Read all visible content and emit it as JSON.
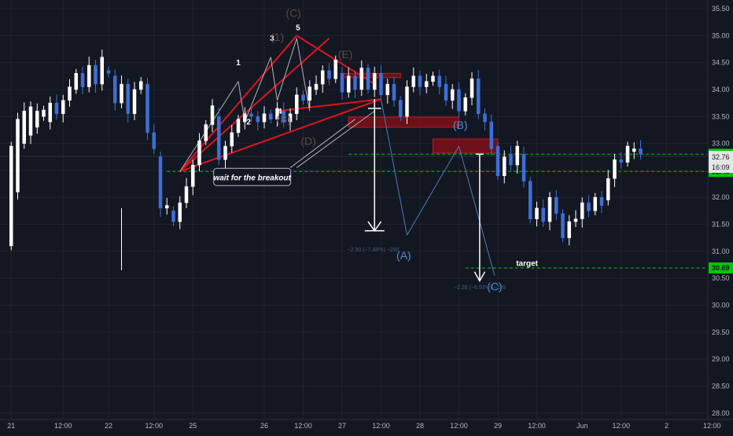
{
  "chart_data": {
    "type": "candlestick",
    "title": "",
    "xlabel": "",
    "ylabel": "",
    "ylim": [
      27.88,
      35.66
    ],
    "y_ticks": [
      "35.50",
      "35.00",
      "34.50",
      "34.00",
      "33.50",
      "33.00",
      "32.50",
      "32.00",
      "31.50",
      "31.00",
      "30.50",
      "30.00",
      "29.50",
      "29.00",
      "28.50",
      "28.00"
    ],
    "x_ticks": [
      "21",
      "12:00",
      "22",
      "12:00",
      "25",
      "26",
      "12:00",
      "27",
      "12:00",
      "28",
      "12:00",
      "29",
      "12:00",
      "Jun",
      "12:00",
      "2",
      "12:00"
    ],
    "x_tick_index": [
      1,
      9,
      16,
      23,
      29,
      40,
      46,
      52,
      58,
      64,
      70,
      76,
      82,
      89,
      95,
      102,
      109
    ],
    "current_price": "32.76",
    "countdown": "16:09",
    "price_tags": [
      {
        "label": "32.80",
        "value": 32.8,
        "color": "#00c805"
      },
      {
        "label": "32.48",
        "value": 32.48,
        "color": "#00c805"
      },
      {
        "label": "30.69",
        "value": 30.69,
        "color": "#00c805"
      }
    ],
    "candles": [
      [
        31.1,
        32.95
      ],
      [
        32.1,
        33.45
      ],
      [
        33.0,
        33.6
      ],
      [
        33.15,
        33.68
      ],
      [
        33.3,
        33.6
      ],
      [
        33.5,
        33.62
      ],
      [
        33.4,
        33.75
      ],
      [
        33.75,
        33.55
      ],
      [
        33.55,
        33.8
      ],
      [
        33.8,
        34.05
      ],
      [
        34.0,
        34.3
      ],
      [
        34.3,
        34.05
      ],
      [
        34.05,
        34.45
      ],
      [
        34.45,
        34.1
      ],
      [
        34.1,
        34.6
      ],
      [
        34.35,
        34.3
      ],
      [
        34.25,
        33.75
      ],
      [
        33.75,
        34.1
      ],
      [
        34.1,
        33.55
      ],
      [
        33.55,
        34.0
      ],
      [
        34.0,
        34.15
      ],
      [
        34.1,
        33.2
      ],
      [
        33.2,
        32.9
      ],
      [
        32.75,
        31.8
      ],
      [
        31.8,
        31.85
      ],
      [
        31.75,
        31.55
      ],
      [
        31.55,
        31.9
      ],
      [
        31.9,
        32.2
      ],
      [
        32.2,
        32.6
      ],
      [
        32.6,
        33.05
      ],
      [
        33.05,
        33.35
      ],
      [
        33.35,
        33.7
      ],
      [
        33.5,
        32.7
      ],
      [
        32.7,
        32.95
      ],
      [
        32.95,
        33.2
      ],
      [
        33.2,
        33.45
      ],
      [
        33.4,
        33.55
      ],
      [
        33.55,
        33.5
      ],
      [
        33.5,
        33.4
      ],
      [
        33.4,
        33.55
      ],
      [
        33.55,
        33.45
      ],
      [
        33.45,
        33.65
      ],
      [
        33.6,
        33.4
      ],
      [
        33.4,
        33.55
      ],
      [
        33.55,
        33.9
      ],
      [
        33.9,
        33.8
      ],
      [
        33.8,
        34.05
      ],
      [
        34.0,
        34.1
      ],
      [
        34.1,
        34.35
      ],
      [
        34.35,
        34.2
      ],
      [
        34.2,
        34.55
      ],
      [
        34.3,
        33.95
      ],
      [
        33.95,
        34.25
      ],
      [
        34.25,
        34.0
      ],
      [
        34.0,
        34.4
      ],
      [
        34.4,
        34.0
      ],
      [
        34.0,
        34.3
      ],
      [
        34.3,
        33.9
      ],
      [
        33.9,
        34.1
      ],
      [
        34.1,
        33.8
      ],
      [
        33.8,
        33.5
      ],
      [
        33.5,
        34.05
      ],
      [
        34.05,
        34.25
      ],
      [
        34.25,
        34.05
      ],
      [
        34.05,
        34.15
      ],
      [
        34.15,
        34.25
      ],
      [
        34.25,
        34.05
      ],
      [
        34.1,
        33.8
      ],
      [
        33.8,
        34.0
      ],
      [
        34.0,
        33.6
      ],
      [
        33.6,
        33.85
      ],
      [
        33.85,
        34.2
      ],
      [
        34.2,
        33.55
      ],
      [
        33.55,
        33.4
      ],
      [
        33.4,
        32.9
      ],
      [
        32.95,
        32.4
      ],
      [
        32.4,
        32.75
      ],
      [
        32.8,
        32.6
      ],
      [
        32.6,
        32.95
      ],
      [
        32.8,
        32.3
      ],
      [
        32.3,
        31.6
      ],
      [
        31.6,
        31.8
      ],
      [
        31.8,
        31.55
      ],
      [
        31.55,
        32.0
      ],
      [
        32.0,
        31.7
      ],
      [
        31.7,
        31.25
      ],
      [
        31.25,
        31.55
      ],
      [
        31.55,
        31.6
      ],
      [
        31.6,
        31.9
      ],
      [
        31.9,
        31.75
      ],
      [
        31.75,
        32.0
      ],
      [
        32.0,
        31.85
      ],
      [
        31.95,
        32.35
      ],
      [
        32.35,
        32.7
      ],
      [
        32.7,
        32.65
      ],
      [
        32.65,
        32.95
      ],
      [
        32.85,
        32.9
      ],
      [
        32.9,
        32.8
      ]
    ],
    "annotations": {
      "wave_labels": [
        {
          "text": "1",
          "color": "#ffffff"
        },
        {
          "text": "2",
          "color": "#ffffff"
        },
        {
          "text": "3",
          "color": "#ffffff"
        },
        {
          "text": "4",
          "color": "#ffffff"
        },
        {
          "text": "5",
          "color": "#ffffff"
        },
        {
          "text": "(1)",
          "color": "#5d4a3f"
        },
        {
          "text": "(C)",
          "color": "#5d4a3f"
        },
        {
          "text": "(E)",
          "color": "#5d4a3f"
        },
        {
          "text": "(B)",
          "color": "#5d4a3f"
        },
        {
          "text": "(D)",
          "color": "#5d4a3f"
        },
        {
          "text": "(A)",
          "color": "#4a90d9"
        },
        {
          "text": "(B)",
          "color": "#4a90d9"
        },
        {
          "text": "(C)",
          "color": "#4a90d9"
        }
      ],
      "callout": "wait for the breakout",
      "target_label": "target",
      "measure_1": "−2.90 (−7.88%) −290",
      "measure_2": "−2.26 (−6.93%) −226"
    },
    "colors": {
      "background": "#131722",
      "grid": "#1e222d",
      "candle_up": "#ffffff",
      "candle_down": "#3c6fd8",
      "trend_lines": "#e0141e",
      "dashed_levels": "#00c805",
      "zones": "#8b0f17",
      "wave_lines": "#4a7bb7"
    }
  }
}
